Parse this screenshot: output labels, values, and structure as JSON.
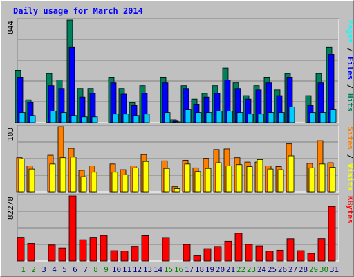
{
  "colors": {
    "hits": "#00805c",
    "files": "#0000ff",
    "pages": "#00ffff",
    "visits": "#ffff00",
    "sites": "#ff8000",
    "kbytes": "#ff0000",
    "day_normal": "#000080",
    "day_weekend": "#008000",
    "title": "#0000ff",
    "grid": "#808080"
  },
  "chart_data": {
    "type": "bar",
    "title": "Daily usage for March 2014",
    "days": [
      {
        "label": "1",
        "weekend": true
      },
      {
        "label": "2",
        "weekend": true
      },
      {
        "label": "3",
        "weekend": false
      },
      {
        "label": "4",
        "weekend": false
      },
      {
        "label": "5",
        "weekend": false
      },
      {
        "label": "6",
        "weekend": false
      },
      {
        "label": "7",
        "weekend": false
      },
      {
        "label": "8",
        "weekend": true
      },
      {
        "label": "9",
        "weekend": true
      },
      {
        "label": "10",
        "weekend": false
      },
      {
        "label": "11",
        "weekend": false
      },
      {
        "label": "12",
        "weekend": false
      },
      {
        "label": "13",
        "weekend": false
      },
      {
        "label": "14",
        "weekend": false
      },
      {
        "label": "15",
        "weekend": true
      },
      {
        "label": "16",
        "weekend": true
      },
      {
        "label": "17",
        "weekend": false
      },
      {
        "label": "18",
        "weekend": false
      },
      {
        "label": "19",
        "weekend": false
      },
      {
        "label": "20",
        "weekend": false
      },
      {
        "label": "21",
        "weekend": false
      },
      {
        "label": "22",
        "weekend": true
      },
      {
        "label": "23",
        "weekend": true
      },
      {
        "label": "24",
        "weekend": false
      },
      {
        "label": "25",
        "weekend": false
      },
      {
        "label": "26",
        "weekend": false
      },
      {
        "label": "27",
        "weekend": false
      },
      {
        "label": "28",
        "weekend": false
      },
      {
        "label": "29",
        "weekend": true
      },
      {
        "label": "30",
        "weekend": true
      },
      {
        "label": "31",
        "weekend": false
      }
    ],
    "panels": [
      {
        "id": "usage",
        "max_label": "844",
        "ymax": 844,
        "legend": [
          "Pages",
          " / ",
          "Files",
          " / ",
          "Hits"
        ],
        "series": [
          {
            "name": "Hits",
            "color": "#00805c",
            "values": [
              431,
              187,
              0,
              404,
              351,
              844,
              281,
              281,
              0,
              374,
              281,
              164,
              304,
              0,
              374,
              23,
              304,
              193,
              240,
              304,
              450,
              327,
              222,
              304,
              374,
              269,
              404,
              0,
              222,
              404,
              620
            ]
          },
          {
            "name": "Files",
            "color": "#0000ff",
            "values": [
              374,
              164,
              0,
              304,
              281,
              620,
              210,
              240,
              0,
              327,
              234,
              140,
              240,
              0,
              327,
              12,
              281,
              152,
              210,
              240,
              351,
              281,
              193,
              269,
              327,
              222,
              374,
              0,
              140,
              327,
              562
            ]
          },
          {
            "name": "Pages",
            "color": "#00ccff",
            "values": [
              82,
              58,
              0,
              94,
              82,
              58,
              47,
              47,
              0,
              70,
              70,
              58,
              70,
              0,
              82,
              6,
              105,
              82,
              82,
              94,
              94,
              82,
              70,
              70,
              82,
              82,
              129,
              0,
              82,
              82,
              105
            ]
          }
        ]
      },
      {
        "id": "visits",
        "max_label": "103",
        "ymax": 103,
        "legend": [
          "Sites",
          " / ",
          "Visits"
        ],
        "series": [
          {
            "name": "Sites",
            "color": "#ff8000",
            "values": [
              54,
              41,
              0,
              58,
              103,
              69,
              34,
              41,
              0,
              44,
              35,
              41,
              59,
              0,
              49,
              8,
              50,
              38,
              53,
              67,
              68,
              54,
              47,
              47,
              41,
              40,
              76,
              0,
              45,
              81,
              46
            ]
          },
          {
            "name": "Visits",
            "color": "#ffff00",
            "values": [
              52,
              36,
              0,
              44,
              54,
              55,
              24,
              31,
              0,
              31,
              27,
              38,
              48,
              0,
              37,
              5,
              44,
              32,
              37,
              46,
              41,
              43,
              40,
              51,
              36,
              35,
              57,
              0,
              38,
              44,
              39
            ]
          }
        ]
      },
      {
        "id": "kbytes",
        "max_label": "82278",
        "ymax": 82278,
        "legend": [
          "KBytes"
        ],
        "series": [
          {
            "name": "KBytes",
            "color": "#ff0000",
            "values": [
              30100,
              22300,
              0,
              20300,
              16500,
              82278,
              27000,
              30100,
              32300,
              13100,
              12500,
              18700,
              32000,
              0,
              29800,
              0,
              20900,
              7400,
              15700,
              18500,
              25100,
              35100,
              21000,
              19200,
              12400,
              13700,
              28200,
              13100,
              9600,
              28300,
              68900
            ]
          }
        ]
      }
    ]
  }
}
